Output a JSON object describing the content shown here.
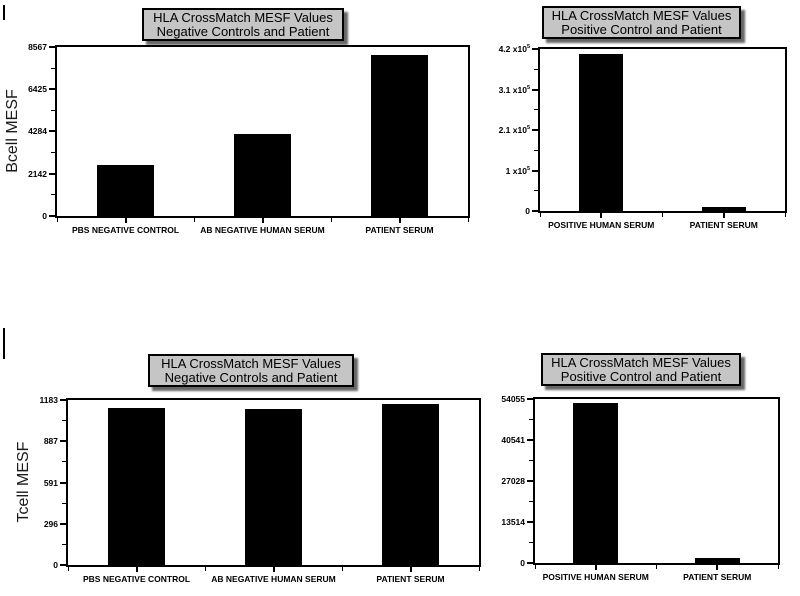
{
  "page": {
    "background": "#ffffff",
    "bar_color": "#000000",
    "title_box_bg": "#c5c5c5"
  },
  "chart_data": [
    {
      "type": "bar",
      "title": "HLA CrossMatch MESF Values",
      "subtitle": "Negative Controls and Patient",
      "ylabel": "Bcell MESF",
      "xlabel": "",
      "categories": [
        "PBS NEGATIVE CONTROL",
        "AB NEGATIVE HUMAN SERUM",
        "PATIENT SERUM"
      ],
      "values": [
        2600,
        4150,
        8150
      ],
      "ylim": [
        0,
        8567
      ],
      "yticks": [
        {
          "value": 0,
          "label": "0"
        },
        {
          "value": 2142,
          "label": "2142"
        },
        {
          "value": 4284,
          "label": "4284"
        },
        {
          "value": 6425,
          "label": "6425"
        },
        {
          "value": 8567,
          "label": "8567"
        }
      ],
      "grid": "off",
      "legend": "none",
      "bar_color": "#000000"
    },
    {
      "type": "bar",
      "title": "HLA CrossMatch MESF Values",
      "subtitle": "Positive Control and Patient",
      "ylabel": "",
      "xlabel": "",
      "categories": [
        "POSITIVE HUMAN SERUM",
        "PATIENT SERUM"
      ],
      "values": [
        407000,
        10000
      ],
      "ylim": [
        0,
        420000
      ],
      "yticks": [
        {
          "value": 0,
          "label": "0"
        },
        {
          "value": 105000,
          "label": "1 x10^5"
        },
        {
          "value": 210000,
          "label": "2.1 x10^5"
        },
        {
          "value": 315000,
          "label": "3.1 x10^5"
        },
        {
          "value": 420000,
          "label": "4.2 x10^5"
        }
      ],
      "grid": "off",
      "legend": "none",
      "bar_color": "#000000"
    },
    {
      "type": "bar",
      "title": "HLA CrossMatch MESF Values",
      "subtitle": "Negative Controls and Patient",
      "ylabel": "Tcell MESF",
      "xlabel": "",
      "categories": [
        "PBS NEGATIVE CONTROL",
        "AB NEGATIVE HUMAN SERUM",
        "PATIENT SERUM"
      ],
      "values": [
        1124,
        1122,
        1152
      ],
      "ylim": [
        0,
        1183
      ],
      "yticks": [
        {
          "value": 0,
          "label": "0"
        },
        {
          "value": 296,
          "label": "296"
        },
        {
          "value": 591,
          "label": "591"
        },
        {
          "value": 887,
          "label": "887"
        },
        {
          "value": 1183,
          "label": "1183"
        }
      ],
      "grid": "off",
      "legend": "none",
      "bar_color": "#000000"
    },
    {
      "type": "bar",
      "title": "HLA CrossMatch MESF Values",
      "subtitle": "Positive Control and Patient",
      "ylabel": "",
      "xlabel": "",
      "categories": [
        "POSITIVE HUMAN SERUM",
        "PATIENT SERUM"
      ],
      "values": [
        52700,
        1800
      ],
      "ylim": [
        0,
        54055
      ],
      "yticks": [
        {
          "value": 0,
          "label": "0"
        },
        {
          "value": 13514,
          "label": "13514"
        },
        {
          "value": 27028,
          "label": "27028"
        },
        {
          "value": 40541,
          "label": "40541"
        },
        {
          "value": 54055,
          "label": "54055"
        }
      ],
      "grid": "off",
      "legend": "none",
      "bar_color": "#000000"
    }
  ]
}
